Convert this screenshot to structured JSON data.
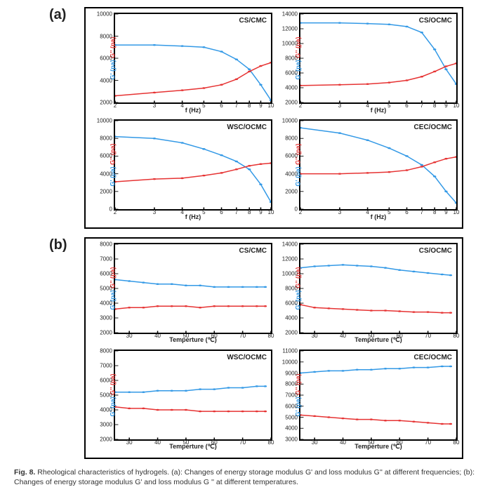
{
  "panel_labels": {
    "a": "(a)",
    "b": "(b)"
  },
  "colors": {
    "gprime": "#3399e6",
    "gpp": "#e63333",
    "axis": "#000000",
    "bg": "#ffffff",
    "tick": "#000000"
  },
  "line_width": 1.8,
  "marker_size": 2,
  "caption": "Fig. 8. Rheological characteristics of hydrogels. (a): Changes of energy storage modulus G' and loss modulus G'' at different frequencies; (b): Changes of energy storage modulus G' and loss modulus G'' at different temperatures.",
  "ylabel_html": "G' (pa) | G'' (pa)",
  "panel_a": {
    "xlabel": "f (Hz)",
    "xscale": "log",
    "xlim": [
      2,
      10
    ],
    "xticks": [
      2,
      3,
      4,
      5,
      6,
      7,
      8,
      9,
      10
    ],
    "charts": [
      {
        "title": "CS/CMC",
        "ylim": [
          2000,
          10000
        ],
        "yticks": [
          2000,
          4000,
          6000,
          8000,
          10000
        ],
        "x": [
          2,
          3,
          4,
          5,
          6,
          7,
          8,
          9,
          10
        ],
        "gprime": [
          7200,
          7200,
          7100,
          7000,
          6600,
          5900,
          5000,
          3600,
          2200
        ],
        "gpp": [
          2600,
          2900,
          3100,
          3300,
          3600,
          4100,
          4800,
          5300,
          5600
        ]
      },
      {
        "title": "CS/OCMC",
        "ylim": [
          2000,
          14000
        ],
        "yticks": [
          2000,
          4000,
          6000,
          8000,
          10000,
          12000,
          14000
        ],
        "x": [
          2,
          3,
          4,
          5,
          6,
          7,
          8,
          9,
          10
        ],
        "gprime": [
          12800,
          12800,
          12700,
          12600,
          12300,
          11500,
          9200,
          6500,
          4500
        ],
        "gpp": [
          4300,
          4400,
          4500,
          4700,
          5000,
          5500,
          6200,
          6900,
          7300
        ]
      },
      {
        "title": "WSC/OCMC",
        "ylim": [
          0,
          10000
        ],
        "yticks": [
          0,
          2000,
          4000,
          6000,
          8000,
          10000
        ],
        "x": [
          2,
          3,
          4,
          5,
          6,
          7,
          8,
          9,
          10
        ],
        "gprime": [
          8200,
          8000,
          7500,
          6800,
          6100,
          5400,
          4500,
          2800,
          800
        ],
        "gpp": [
          3100,
          3400,
          3500,
          3800,
          4100,
          4500,
          4900,
          5100,
          5200
        ]
      },
      {
        "title": "CEC/OCMC",
        "ylim": [
          0,
          10000
        ],
        "yticks": [
          0,
          2000,
          4000,
          6000,
          8000,
          10000
        ],
        "x": [
          2,
          3,
          4,
          5,
          6,
          7,
          8,
          9,
          10
        ],
        "gprime": [
          9200,
          8600,
          7800,
          6900,
          6000,
          5000,
          3700,
          2000,
          700
        ],
        "gpp": [
          4000,
          4000,
          4100,
          4200,
          4400,
          4800,
          5300,
          5700,
          5900
        ]
      }
    ]
  },
  "panel_b": {
    "xlabel": "Temperture (℃)",
    "xscale": "linear",
    "xlim": [
      25,
      80
    ],
    "xticks": [
      30,
      40,
      50,
      60,
      70,
      80
    ],
    "charts": [
      {
        "title": "CS/CMC",
        "ylim": [
          2000,
          8000
        ],
        "yticks": [
          2000,
          3000,
          4000,
          5000,
          6000,
          7000,
          8000
        ],
        "x": [
          25,
          30,
          35,
          40,
          45,
          50,
          55,
          60,
          65,
          70,
          75,
          78
        ],
        "gprime": [
          5600,
          5500,
          5400,
          5300,
          5300,
          5200,
          5200,
          5100,
          5100,
          5100,
          5100,
          5100
        ],
        "gpp": [
          3600,
          3700,
          3700,
          3800,
          3800,
          3800,
          3700,
          3800,
          3800,
          3800,
          3800,
          3800
        ]
      },
      {
        "title": "CS/OCMC",
        "ylim": [
          2000,
          14000
        ],
        "yticks": [
          2000,
          4000,
          6000,
          8000,
          10000,
          12000,
          14000
        ],
        "x": [
          25,
          30,
          35,
          40,
          45,
          50,
          55,
          60,
          65,
          70,
          75,
          78
        ],
        "gprime": [
          10800,
          11000,
          11100,
          11200,
          11100,
          11000,
          10800,
          10500,
          10300,
          10100,
          9900,
          9800
        ],
        "gpp": [
          5800,
          5400,
          5300,
          5200,
          5100,
          5000,
          5000,
          4900,
          4800,
          4800,
          4700,
          4700
        ]
      },
      {
        "title": "WSC/OCMC",
        "ylim": [
          2000,
          8000
        ],
        "yticks": [
          2000,
          3000,
          4000,
          5000,
          6000,
          7000,
          8000
        ],
        "x": [
          25,
          30,
          35,
          40,
          45,
          50,
          55,
          60,
          65,
          70,
          75,
          78
        ],
        "gprime": [
          5200,
          5200,
          5200,
          5300,
          5300,
          5300,
          5400,
          5400,
          5500,
          5500,
          5600,
          5600
        ],
        "gpp": [
          4200,
          4100,
          4100,
          4000,
          4000,
          4000,
          3900,
          3900,
          3900,
          3900,
          3900,
          3900
        ]
      },
      {
        "title": "CEC/OCMC",
        "ylim": [
          3000,
          11000
        ],
        "yticks": [
          3000,
          4000,
          5000,
          6000,
          7000,
          8000,
          9000,
          10000,
          11000
        ],
        "x": [
          25,
          30,
          35,
          40,
          45,
          50,
          55,
          60,
          65,
          70,
          75,
          78
        ],
        "gprime": [
          9000,
          9100,
          9200,
          9200,
          9300,
          9300,
          9400,
          9400,
          9500,
          9500,
          9600,
          9600
        ],
        "gpp": [
          5200,
          5100,
          5000,
          4900,
          4800,
          4800,
          4700,
          4700,
          4600,
          4500,
          4400,
          4400
        ]
      }
    ]
  }
}
